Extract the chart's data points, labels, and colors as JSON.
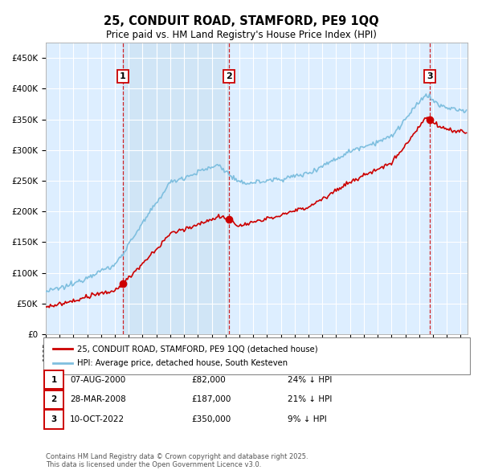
{
  "title": "25, CONDUIT ROAD, STAMFORD, PE9 1QQ",
  "subtitle": "Price paid vs. HM Land Registry's House Price Index (HPI)",
  "ylim": [
    0,
    475000
  ],
  "yticks": [
    0,
    50000,
    100000,
    150000,
    200000,
    250000,
    300000,
    350000,
    400000,
    450000
  ],
  "background_color": "#ffffff",
  "plot_bg_color": "#ddeeff",
  "grid_color": "#ffffff",
  "hpi_color": "#7fbfdf",
  "price_color": "#cc0000",
  "vline_color": "#cc0000",
  "purchases": [
    {
      "date_num": 2000.58,
      "price": 82000,
      "label": "1"
    },
    {
      "date_num": 2008.23,
      "price": 187000,
      "label": "2"
    },
    {
      "date_num": 2022.77,
      "price": 350000,
      "label": "3"
    }
  ],
  "legend_house_label": "25, CONDUIT ROAD, STAMFORD, PE9 1QQ (detached house)",
  "legend_hpi_label": "HPI: Average price, detached house, South Kesteven",
  "footer": "Contains HM Land Registry data © Crown copyright and database right 2025.\nThis data is licensed under the Open Government Licence v3.0.",
  "table_rows": [
    {
      "label": "1",
      "date": "07-AUG-2000",
      "price": "£82,000",
      "pct": "24% ↓ HPI"
    },
    {
      "label": "2",
      "date": "28-MAR-2008",
      "price": "£187,000",
      "pct": "21% ↓ HPI"
    },
    {
      "label": "3",
      "date": "10-OCT-2022",
      "price": "£350,000",
      "pct": "9% ↓ HPI"
    }
  ],
  "xstart": 1995,
  "xend": 2025.5
}
